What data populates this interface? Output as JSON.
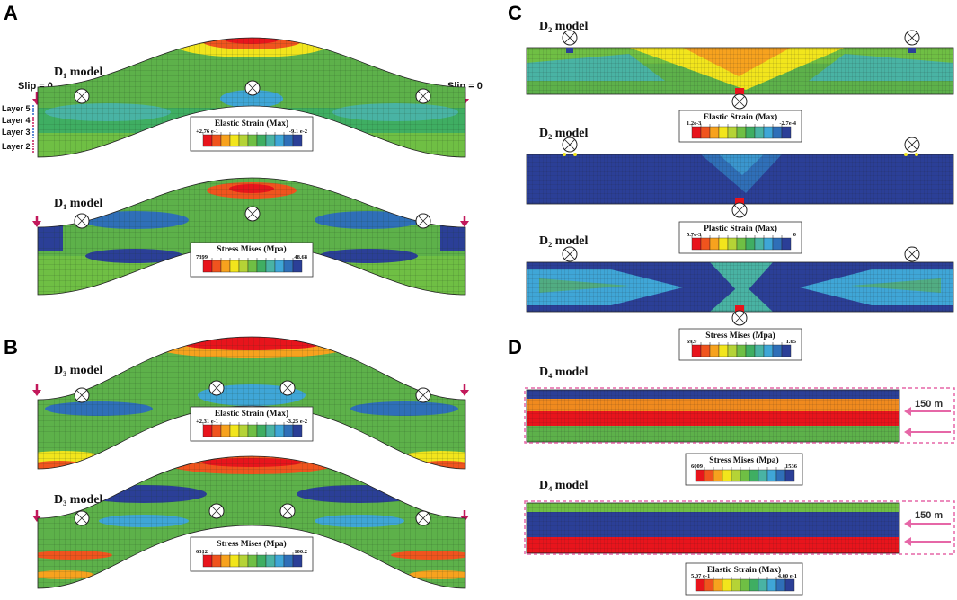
{
  "panels": {
    "A": {
      "letter": "A",
      "top_label": "D₁ model",
      "bottom_label": "D₁ model",
      "slip_left": "Slip = 0",
      "slip_right": "Slip = 0",
      "layers": [
        "Layer 5",
        "Layer 4",
        "Layer 3",
        "Layer 2"
      ],
      "legend_top": {
        "title": "Elastic Strain (Max)",
        "left": "+2.76 e-1",
        "right": "-9.1 e-2"
      },
      "legend_bottom": {
        "title": "Stress Mises (Mpa)",
        "left": "7399",
        "right": "48.68"
      }
    },
    "B": {
      "letter": "B",
      "top_label": "D₃ model",
      "bottom_label": "D₃ model",
      "legend_top": {
        "title": "Elastic Strain (Max)",
        "left": "+2.31 e-1",
        "right": "-3.25 e-2"
      },
      "legend_bottom": {
        "title": "Stress Mises (Mpa)",
        "left": "6312",
        "right": "100.2"
      }
    },
    "C": {
      "letter": "C",
      "labels": [
        "D₂ model",
        "D₂ model",
        "D₂ model"
      ],
      "legend_1": {
        "title": "Elastic Strain (Max)",
        "left": "1.2e-3",
        "right": "-2.7e-4"
      },
      "legend_2": {
        "title": "Plastic Strain (Max)",
        "left": "5.7e-3",
        "right": "0"
      },
      "legend_3": {
        "title": "Stress Mises (Mpa)",
        "left": "69.9",
        "right": "1.05"
      }
    },
    "D": {
      "letter": "D",
      "labels": [
        "D₄ model",
        "D₄ model"
      ],
      "push_1": "150 m",
      "push_2": "150 m",
      "legend_1": {
        "title": "Stress Mises (Mpa)",
        "left": "6009",
        "right": "1536"
      },
      "legend_2": {
        "title": "Elastic Strain (Max)",
        "left": "5.07 e-1",
        "right": "4.00 e-1"
      }
    }
  },
  "colors": {
    "scale": [
      "#e8141c",
      "#f0541e",
      "#f7a21e",
      "#f2e51c",
      "#b5d336",
      "#6fbf44",
      "#3fae62",
      "#49b3a4",
      "#3fa6d7",
      "#2f6fb8",
      "#2b3f97"
    ],
    "mesh_green": "#5db14a",
    "mesh_blue": "#2b3f97",
    "mesh_cyan": "#3fa6d7",
    "mesh_red": "#e8141c",
    "mesh_orange": "#f08a1e",
    "slip_arrow": "#c2185b",
    "push_arrow": "#e667a7"
  }
}
